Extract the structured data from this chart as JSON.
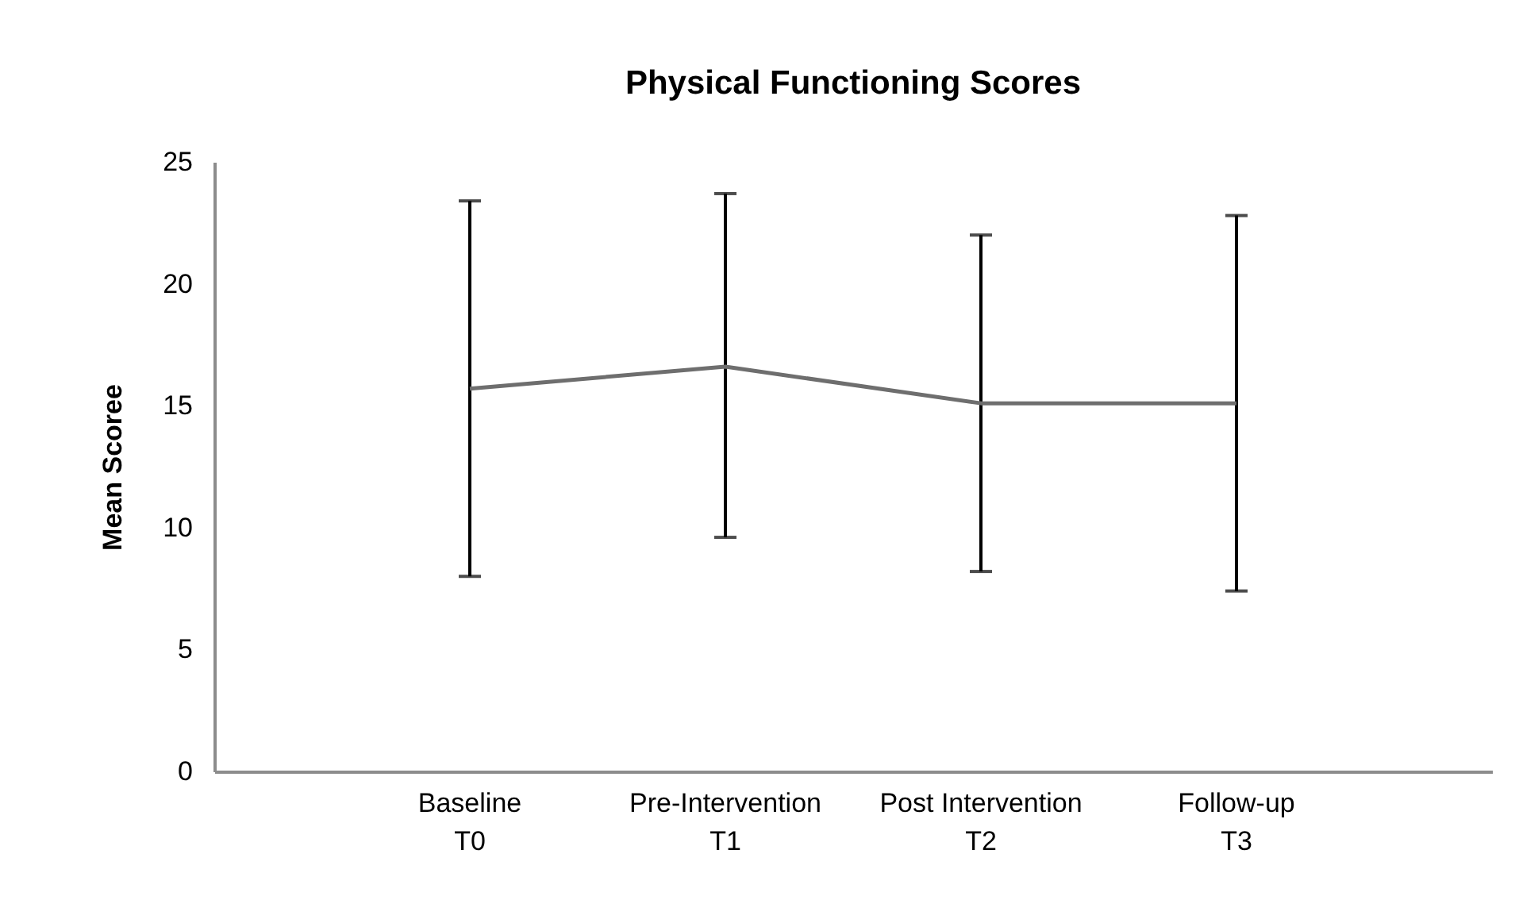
{
  "chart_data": {
    "type": "line",
    "title": "Physical Functioning Scores",
    "ylabel": "Mean Scoree",
    "categories": [
      "Baseline\nT0",
      "Pre-Intervention\nT1",
      "Post Intervention\nT2",
      "Follow-up\nT3"
    ],
    "series": [
      {
        "color": "#6e6e6e",
        "values": [
          15.7,
          16.6,
          15.1,
          15.1
        ],
        "errors": [
          [
            8.0,
            23.4
          ],
          [
            9.6,
            23.7
          ],
          [
            8.2,
            22.0
          ],
          [
            7.4,
            22.8
          ]
        ]
      }
    ],
    "ylim": [
      0,
      25
    ],
    "yticks": [
      0,
      5,
      10,
      15,
      20,
      25
    ],
    "grid": false,
    "marker": "none",
    "line_style": "solid"
  }
}
